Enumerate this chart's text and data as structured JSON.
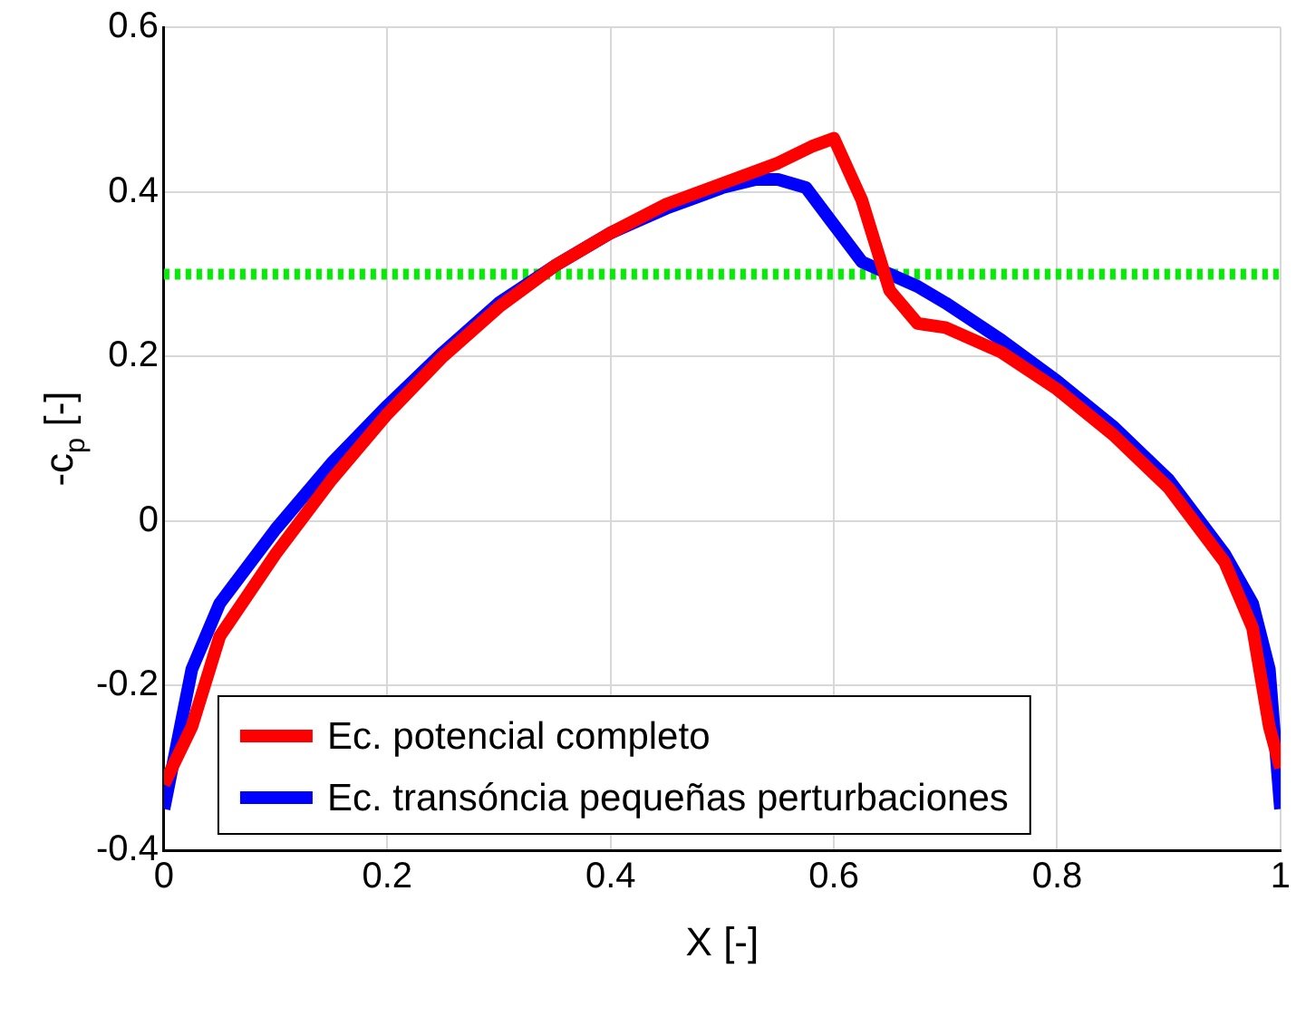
{
  "chart_data": {
    "type": "line",
    "xlabel": "X [-]",
    "ylabel": "-c$_{p}$ [-]",
    "xlim": [
      0,
      1
    ],
    "xticks": [
      0,
      0.2,
      0.4,
      0.6,
      0.8,
      1
    ],
    "ylim": [
      -0.4,
      0.6
    ],
    "yticks": [
      -0.4,
      -0.2,
      0,
      0.2,
      0.4,
      0.6
    ],
    "grid": true,
    "legend": "bottom left",
    "marker": "none",
    "line_style": "solid",
    "series": [
      {
        "name": "Ec. potencial completo",
        "color": "#ff0000",
        "x": [
          0,
          0.025,
          0.05,
          0.1,
          0.15,
          0.2,
          0.25,
          0.3,
          0.35,
          0.4,
          0.45,
          0.5,
          0.55,
          0.58,
          0.6,
          0.625,
          0.65,
          0.675,
          0.7,
          0.75,
          0.8,
          0.85,
          0.9,
          0.95,
          0.975,
          0.99,
          1
        ],
        "values": [
          -0.32,
          -0.25,
          -0.14,
          -0.04,
          0.05,
          0.13,
          0.2,
          0.26,
          0.31,
          0.35,
          0.385,
          0.41,
          0.435,
          0.455,
          0.465,
          0.39,
          0.28,
          0.24,
          0.235,
          0.205,
          0.16,
          0.105,
          0.04,
          -0.05,
          -0.13,
          -0.25,
          -0.3
        ]
      },
      {
        "name": "Ec. transóncia pequeñas perturbaciones",
        "color": "#0000ff",
        "x": [
          0,
          0.025,
          0.05,
          0.1,
          0.15,
          0.2,
          0.25,
          0.3,
          0.35,
          0.4,
          0.45,
          0.5,
          0.53,
          0.55,
          0.575,
          0.6,
          0.625,
          0.65,
          0.675,
          0.7,
          0.75,
          0.8,
          0.85,
          0.9,
          0.95,
          0.975,
          0.99,
          1
        ],
        "values": [
          -0.35,
          -0.18,
          -0.1,
          -0.01,
          0.07,
          0.14,
          0.205,
          0.265,
          0.31,
          0.35,
          0.38,
          0.405,
          0.415,
          0.415,
          0.405,
          0.36,
          0.315,
          0.3,
          0.285,
          0.265,
          0.22,
          0.17,
          0.115,
          0.05,
          -0.04,
          -0.1,
          -0.18,
          -0.35
        ]
      }
    ],
    "ref_lines": [
      {
        "axis": "y",
        "value": 0.3,
        "color": "#00ee00",
        "line_style": "dotted"
      }
    ]
  }
}
